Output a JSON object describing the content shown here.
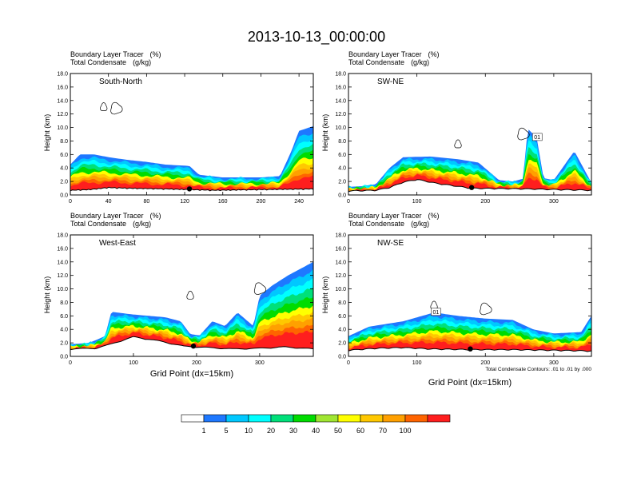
{
  "figure": {
    "title": "2013-10-13_00:00:00",
    "panel_line1": "Boundary Layer Tracer",
    "panel_unit1": "(%)",
    "panel_line2": "Total Condensate",
    "panel_unit2": "(g/kg)",
    "xlabel": "Grid Point (dx=15km)",
    "ylabel": "Height (km)",
    "contour_note": "Total Condensate Contours: .01 to .01 by .000"
  },
  "colorbar": {
    "colors": [
      "#ffffff",
      "#1e78ff",
      "#00c8ff",
      "#00ffff",
      "#00e07a",
      "#00dc00",
      "#a0e632",
      "#ffff00",
      "#ffc800",
      "#ffa000",
      "#ff6400",
      "#ff1e1e"
    ],
    "tick_labels": [
      "1",
      "5",
      "10",
      "20",
      "30",
      "40",
      "50",
      "60",
      "70",
      "100"
    ]
  },
  "chart_data": [
    {
      "type": "heatmap",
      "label": "South-North",
      "xlim": [
        0,
        255
      ],
      "ylim": [
        0,
        18
      ],
      "xticks": [
        0,
        40,
        80,
        120,
        160,
        200,
        240
      ],
      "yticks": [
        "0.0",
        "2.0",
        "4.0",
        "6.0",
        "8.0",
        "10.0",
        "12.0",
        "14.0",
        "16.0",
        "18.0"
      ],
      "tracer_top_profile": [
        [
          0,
          4.5
        ],
        [
          10,
          6.0
        ],
        [
          25,
          6.0
        ],
        [
          40,
          5.6
        ],
        [
          60,
          5.2
        ],
        [
          80,
          4.9
        ],
        [
          100,
          4.5
        ],
        [
          125,
          4.3
        ],
        [
          135,
          3.0
        ],
        [
          160,
          2.6
        ],
        [
          200,
          2.6
        ],
        [
          220,
          2.8
        ],
        [
          232,
          6.5
        ],
        [
          240,
          9.5
        ],
        [
          255,
          10.2
        ]
      ],
      "terrain_profile": [
        [
          0,
          0.6
        ],
        [
          20,
          0.7
        ],
        [
          40,
          1.0
        ],
        [
          60,
          0.9
        ],
        [
          100,
          0.8
        ],
        [
          150,
          0.6
        ],
        [
          200,
          0.7
        ],
        [
          255,
          0.8
        ]
      ],
      "marker_x": 125
    },
    {
      "type": "heatmap",
      "label": "SW-NE",
      "xlim": [
        0,
        355
      ],
      "ylim": [
        0,
        18
      ],
      "xticks": [
        0,
        100,
        200,
        300
      ],
      "yticks": [
        "0.0",
        "2.0",
        "4.0",
        "6.0",
        "8.0",
        "10.0",
        "12.0",
        "14.0",
        "16.0",
        "18.0"
      ],
      "tracer_top_profile": [
        [
          0,
          1.2
        ],
        [
          20,
          1.3
        ],
        [
          40,
          1.6
        ],
        [
          50,
          2.8
        ],
        [
          60,
          4.0
        ],
        [
          80,
          5.6
        ],
        [
          120,
          5.7
        ],
        [
          160,
          5.3
        ],
        [
          190,
          4.8
        ],
        [
          220,
          2.2
        ],
        [
          240,
          2.0
        ],
        [
          255,
          2.4
        ],
        [
          262,
          9.8
        ],
        [
          275,
          8.5
        ],
        [
          285,
          2.5
        ],
        [
          300,
          2.2
        ],
        [
          330,
          6.5
        ],
        [
          355,
          1.8
        ]
      ],
      "terrain_profile": [
        [
          0,
          0.5
        ],
        [
          40,
          0.6
        ],
        [
          60,
          1.0
        ],
        [
          80,
          1.8
        ],
        [
          100,
          2.2
        ],
        [
          130,
          1.6
        ],
        [
          180,
          0.9
        ],
        [
          260,
          0.8
        ],
        [
          355,
          0.6
        ]
      ],
      "marker_x": 180,
      "contour_label": "01"
    },
    {
      "type": "heatmap",
      "label": "West-East",
      "xlim": [
        0,
        385
      ],
      "ylim": [
        0,
        18
      ],
      "xticks": [
        0,
        100,
        200,
        300
      ],
      "yticks": [
        "0.0",
        "2.0",
        "4.0",
        "6.0",
        "8.0",
        "10.0",
        "12.0",
        "14.0",
        "16.0",
        "18.0"
      ],
      "tracer_top_profile": [
        [
          0,
          1.8
        ],
        [
          30,
          2.0
        ],
        [
          55,
          3.0
        ],
        [
          65,
          6.6
        ],
        [
          100,
          6.2
        ],
        [
          150,
          5.8
        ],
        [
          175,
          5.2
        ],
        [
          190,
          3.3
        ],
        [
          205,
          3.1
        ],
        [
          225,
          5.2
        ],
        [
          245,
          4.5
        ],
        [
          265,
          6.5
        ],
        [
          290,
          4.5
        ],
        [
          300,
          9.0
        ],
        [
          320,
          10.5
        ],
        [
          345,
          12.0
        ],
        [
          385,
          14.0
        ]
      ],
      "terrain_profile": [
        [
          0,
          1.0
        ],
        [
          40,
          1.1
        ],
        [
          60,
          1.6
        ],
        [
          100,
          2.8
        ],
        [
          140,
          2.2
        ],
        [
          180,
          1.4
        ],
        [
          220,
          1.2
        ],
        [
          260,
          1.0
        ],
        [
          300,
          1.1
        ],
        [
          340,
          1.3
        ],
        [
          385,
          1.0
        ]
      ],
      "marker_x": 195
    },
    {
      "type": "heatmap",
      "label": "NW-SE",
      "xlim": [
        0,
        355
      ],
      "ylim": [
        0,
        18
      ],
      "xticks": [
        0,
        100,
        200,
        300
      ],
      "yticks": [
        "0.0",
        "2.0",
        "4.0",
        "6.0",
        "8.0",
        "10.0",
        "12.0",
        "14.0",
        "16.0",
        "18.0"
      ],
      "tracer_top_profile": [
        [
          0,
          3.0
        ],
        [
          30,
          4.4
        ],
        [
          80,
          5.2
        ],
        [
          125,
          6.5
        ],
        [
          160,
          6.0
        ],
        [
          200,
          5.6
        ],
        [
          240,
          5.4
        ],
        [
          270,
          4.0
        ],
        [
          300,
          3.4
        ],
        [
          340,
          3.6
        ],
        [
          355,
          6.0
        ]
      ],
      "terrain_profile": [
        [
          0,
          0.8
        ],
        [
          40,
          1.1
        ],
        [
          80,
          1.2
        ],
        [
          120,
          1.0
        ],
        [
          180,
          0.9
        ],
        [
          240,
          0.9
        ],
        [
          300,
          0.8
        ],
        [
          355,
          0.7
        ]
      ],
      "marker_x": 178,
      "contour_label": "01"
    }
  ]
}
